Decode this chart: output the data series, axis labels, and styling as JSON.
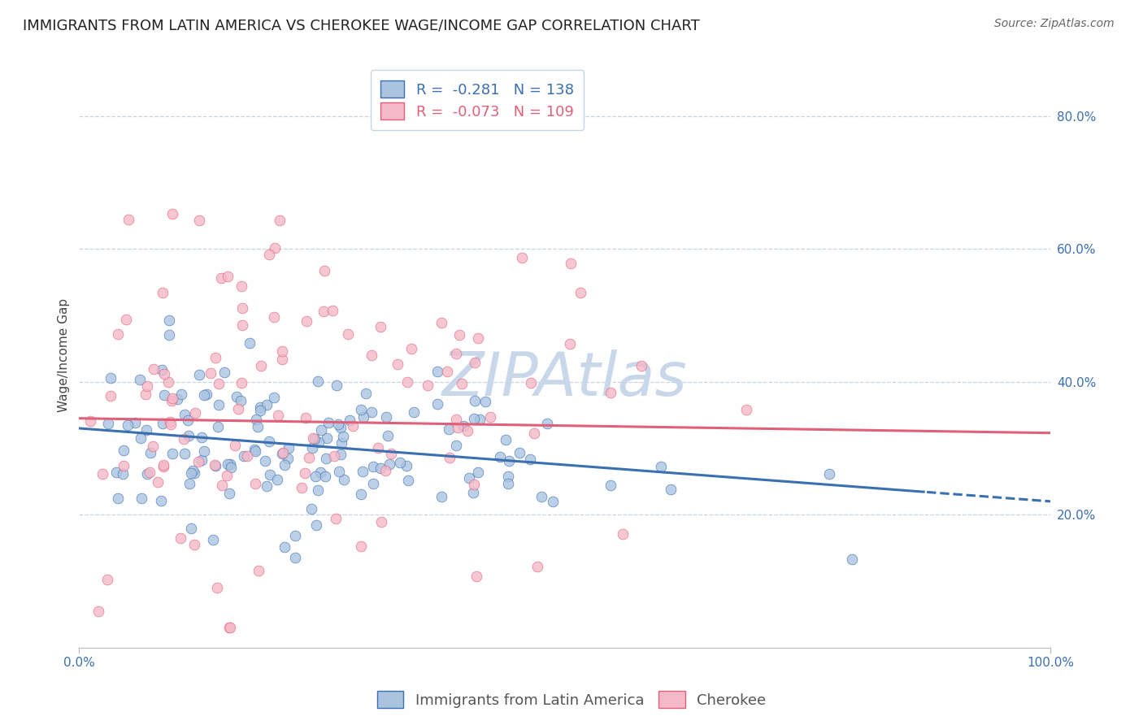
{
  "title": "IMMIGRANTS FROM LATIN AMERICA VS CHEROKEE WAGE/INCOME GAP CORRELATION CHART",
  "source": "Source: ZipAtlas.com",
  "ylabel": "Wage/Income Gap",
  "xlim": [
    0,
    1.0
  ],
  "ylim": [
    0.0,
    0.88
  ],
  "xtick_labels": [
    "0.0%",
    "100.0%"
  ],
  "ytick_labels": [
    "20.0%",
    "40.0%",
    "60.0%",
    "80.0%"
  ],
  "ytick_values": [
    0.2,
    0.4,
    0.6,
    0.8
  ],
  "blue_R": -0.281,
  "blue_N": 138,
  "pink_R": -0.073,
  "pink_N": 109,
  "blue_label": "Immigrants from Latin America",
  "pink_label": "Cherokee",
  "blue_color": "#aac4e0",
  "pink_color": "#f5b8c8",
  "blue_line_color": "#3a6fb0",
  "pink_line_color": "#e0607a",
  "title_fontsize": 13,
  "legend_fontsize": 13,
  "axis_label_fontsize": 11,
  "tick_fontsize": 11,
  "watermark_color": "#c8d8ea",
  "background_color": "#ffffff",
  "grid_color": "#c8d4de",
  "seed": 42,
  "blue_intercept": 0.33,
  "blue_slope": -0.11,
  "pink_intercept": 0.345,
  "pink_slope": -0.022
}
